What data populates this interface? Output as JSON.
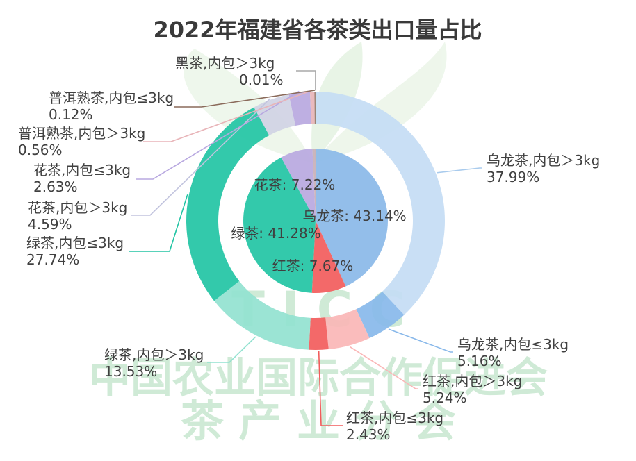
{
  "watermark": {
    "latin": "T I C C",
    "line1": "中国农业国际合作促进会",
    "line2": "茶 产 业 分 会"
  },
  "chart_data": {
    "type": "pie",
    "title": "2022年福建省各茶类出口量占比",
    "inner": [
      {
        "name": "乌龙茶",
        "value": 43.14,
        "label": "乌龙茶: 43.14%",
        "color": "#8ab8e8"
      },
      {
        "name": "红茶",
        "value": 7.67,
        "label": "红茶: 7.67%",
        "color": "#f25c5c"
      },
      {
        "name": "绿茶",
        "value": 41.28,
        "label": "绿茶: 41.28%",
        "color": "#22c4a4"
      },
      {
        "name": "花茶",
        "value": 7.22,
        "label": "花茶: 7.22%",
        "color": "#b8a8e0"
      },
      {
        "name": "普洱熟茶",
        "value": 0.68,
        "label": "",
        "color": "#c8b0b8"
      },
      {
        "name": "黑茶",
        "value": 0.01,
        "label": "",
        "color": "#9a7a6a"
      }
    ],
    "outer": [
      {
        "name": "乌龙茶,内包＞3kg",
        "value": 37.99,
        "pct": "37.99%",
        "color": "#c4dcf4"
      },
      {
        "name": "乌龙茶,内包≤3kg",
        "value": 5.16,
        "pct": "5.16%",
        "color": "#88b8ea"
      },
      {
        "name": "红茶,内包＞3kg",
        "value": 5.24,
        "pct": "5.24%",
        "color": "#fab6b6"
      },
      {
        "name": "红茶,内包≤3kg",
        "value": 2.43,
        "pct": "2.43%",
        "color": "#f25c5c"
      },
      {
        "name": "绿茶,内包＞3kg",
        "value": 13.53,
        "pct": "13.53%",
        "color": "#92e2d0"
      },
      {
        "name": "绿茶,内包≤3kg",
        "value": 27.74,
        "pct": "27.74%",
        "color": "#22c4a4"
      },
      {
        "name": "花茶,内包＞3kg",
        "value": 4.59,
        "pct": "4.59%",
        "color": "#d0d2e4"
      },
      {
        "name": "花茶,内包≤3kg",
        "value": 2.63,
        "pct": "2.63%",
        "color": "#b8a8e0"
      },
      {
        "name": "普洱熟茶,内包＞3kg",
        "value": 0.56,
        "pct": "0.56%",
        "color": "#e8b4b8"
      },
      {
        "name": "普洱熟茶,内包≤3kg",
        "value": 0.12,
        "pct": "0.12%",
        "color": "#8a6a5a"
      },
      {
        "name": "黑茶,内包＞3kg",
        "value": 0.01,
        "pct": "0.01%",
        "color": "#a8a8a8"
      }
    ]
  }
}
